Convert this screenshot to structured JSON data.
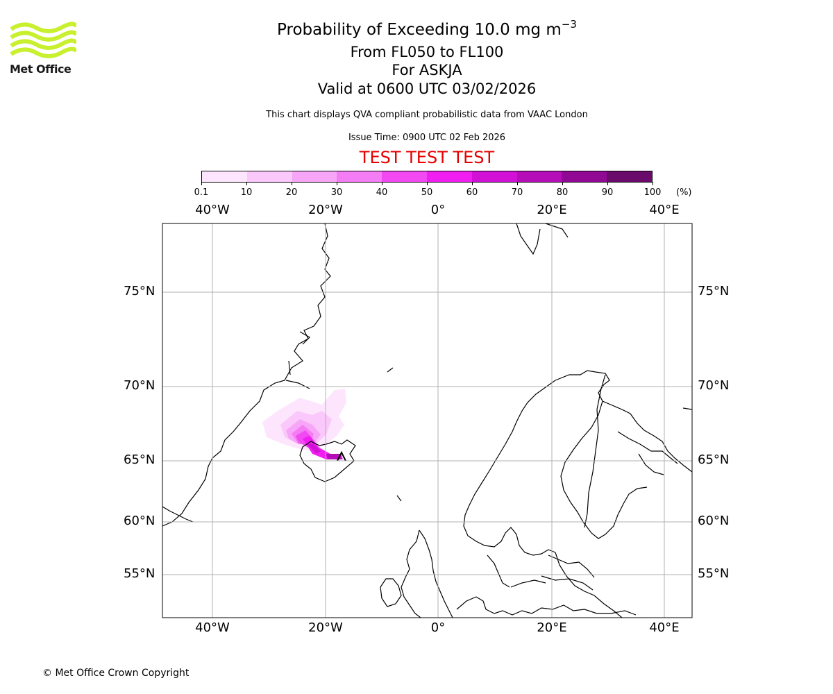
{
  "logo": {
    "text": "Met Office",
    "color": "#c8f02e"
  },
  "header": {
    "title_main": "Probability of Exceeding 10.0 mg m",
    "title_exp": "−3",
    "level_range": "From FL050 to FL100",
    "volcano": "For ASKJA",
    "valid_time": "Valid at 0600 UTC 03/02/2026",
    "note": "This chart displays QVA compliant probabilistic data from VAAC London",
    "issue_time": "Issue Time: 0900 UTC 02 Feb 2026",
    "test_banner": "TEST TEST TEST"
  },
  "colorbar": {
    "labels": [
      "0.1",
      "10",
      "20",
      "30",
      "40",
      "50",
      "60",
      "70",
      "80",
      "90",
      "100"
    ],
    "colors": [
      "#fde6fd",
      "#fac8fa",
      "#f7a6f7",
      "#f47cf4",
      "#f249f2",
      "#f01ef0",
      "#d112d6",
      "#b50eb9",
      "#900894",
      "#6a0a6a"
    ],
    "unit": "(%)"
  },
  "map": {
    "lon_labels": [
      "40°W",
      "20°W",
      "0°",
      "20°E",
      "40°E"
    ],
    "lat_labels": [
      "75°N",
      "70°N",
      "65°N",
      "60°N",
      "55°N"
    ],
    "grid": true
  },
  "footer": {
    "copyright": "© Met Office Crown Copyright"
  }
}
